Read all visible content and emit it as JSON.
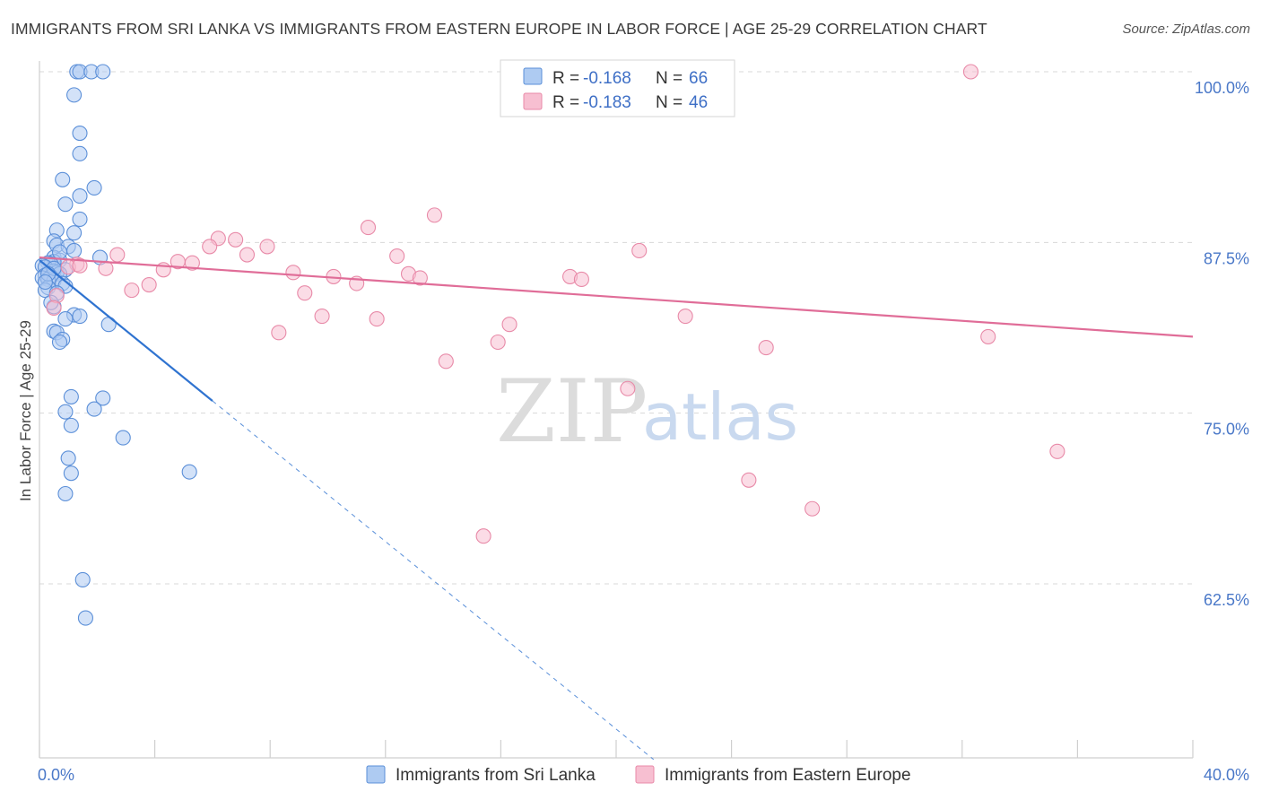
{
  "header": {
    "title": "IMMIGRANTS FROM SRI LANKA VS IMMIGRANTS FROM EASTERN EUROPE IN LABOR FORCE | AGE 25-29 CORRELATION CHART",
    "source": "Source: ZipAtlas.com"
  },
  "watermark": {
    "zip": "ZIP",
    "atlas": "atlas"
  },
  "colors": {
    "blue_fill": "#aecbf2",
    "blue_stroke": "#5b8fd8",
    "blue_line": "#2f73d0",
    "pink_fill": "#f7bfd1",
    "pink_stroke": "#e88aa8",
    "pink_line": "#e06d98",
    "grid": "#d8d8d8",
    "tick_text": "#4a78c8"
  },
  "chart_data": {
    "type": "scatter",
    "title": "IMMIGRANTS FROM SRI LANKA VS IMMIGRANTS FROM EASTERN EUROPE IN LABOR FORCE | AGE 25-29 CORRELATION CHART",
    "xlabel": "",
    "ylabel": "In Labor Force | Age 25-29",
    "xlim": [
      0,
      40
    ],
    "ylim": [
      50,
      102
    ],
    "x_tick_labels": [
      "0.0%",
      "40.0%"
    ],
    "y_ticks": [
      62.5,
      75.0,
      87.5,
      100.0
    ],
    "y_tick_labels": [
      "62.5%",
      "75.0%",
      "87.5%",
      "100.0%"
    ],
    "grid": true,
    "legend_position": "top-center",
    "legend": [
      {
        "r_label": "R = ",
        "r_value": "-0.168",
        "n_label": "N = ",
        "n_value": "66"
      },
      {
        "r_label": "R = ",
        "r_value": "-0.183",
        "n_label": "N = ",
        "n_value": "46"
      }
    ],
    "series": [
      {
        "name": "Immigrants from Sri Lanka",
        "color": "#5b8fd8",
        "trend": {
          "x": [
            0,
            6.0
          ],
          "y": [
            86.2,
            75.9
          ],
          "dash_to_x": 21.3
        },
        "points": [
          [
            1.3,
            100.0
          ],
          [
            1.4,
            100.0
          ],
          [
            1.8,
            100.0
          ],
          [
            2.2,
            100.0
          ],
          [
            1.2,
            98.3
          ],
          [
            1.4,
            95.5
          ],
          [
            1.4,
            94.0
          ],
          [
            0.8,
            92.1
          ],
          [
            1.9,
            91.5
          ],
          [
            1.4,
            90.9
          ],
          [
            0.9,
            90.3
          ],
          [
            1.4,
            89.2
          ],
          [
            0.6,
            88.4
          ],
          [
            1.2,
            88.2
          ],
          [
            0.5,
            87.6
          ],
          [
            0.6,
            87.3
          ],
          [
            1.0,
            87.2
          ],
          [
            1.2,
            86.9
          ],
          [
            0.5,
            86.4
          ],
          [
            0.7,
            86.2
          ],
          [
            0.5,
            86.1
          ],
          [
            0.3,
            86.0
          ],
          [
            0.4,
            85.9
          ],
          [
            0.1,
            85.8
          ],
          [
            0.2,
            85.7
          ],
          [
            0.9,
            85.5
          ],
          [
            0.5,
            85.4
          ],
          [
            0.6,
            85.3
          ],
          [
            0.7,
            85.2
          ],
          [
            0.2,
            85.1
          ],
          [
            0.4,
            85.0
          ],
          [
            0.1,
            84.9
          ],
          [
            0.3,
            84.8
          ],
          [
            0.5,
            84.7
          ],
          [
            0.8,
            84.5
          ],
          [
            0.9,
            84.3
          ],
          [
            0.3,
            84.2
          ],
          [
            0.2,
            84.0
          ],
          [
            0.6,
            83.8
          ],
          [
            0.5,
            82.8
          ],
          [
            1.2,
            82.2
          ],
          [
            1.4,
            82.1
          ],
          [
            0.9,
            81.9
          ],
          [
            2.4,
            81.5
          ],
          [
            0.5,
            81.0
          ],
          [
            0.6,
            80.9
          ],
          [
            0.8,
            80.4
          ],
          [
            0.7,
            80.2
          ],
          [
            1.1,
            76.2
          ],
          [
            2.2,
            76.1
          ],
          [
            0.9,
            75.1
          ],
          [
            1.9,
            75.3
          ],
          [
            1.1,
            74.1
          ],
          [
            2.9,
            73.2
          ],
          [
            1.0,
            71.7
          ],
          [
            1.1,
            70.6
          ],
          [
            5.2,
            70.7
          ],
          [
            0.9,
            69.1
          ],
          [
            1.5,
            62.8
          ],
          [
            1.6,
            60.0
          ],
          [
            2.1,
            86.4
          ],
          [
            0.5,
            85.6
          ],
          [
            0.3,
            85.2
          ],
          [
            0.2,
            84.6
          ],
          [
            0.7,
            86.8
          ],
          [
            0.4,
            83.1
          ]
        ]
      },
      {
        "name": "Immigrants from Eastern Europe",
        "color": "#e88aa8",
        "trend": {
          "x": [
            0,
            40
          ],
          "y": [
            86.4,
            80.6
          ]
        },
        "points": [
          [
            19.7,
            100.0
          ],
          [
            32.3,
            100.0
          ],
          [
            20.8,
            100.0
          ],
          [
            13.7,
            89.5
          ],
          [
            11.4,
            88.6
          ],
          [
            6.2,
            87.8
          ],
          [
            6.8,
            87.7
          ],
          [
            5.9,
            87.2
          ],
          [
            7.9,
            87.2
          ],
          [
            20.8,
            86.9
          ],
          [
            2.7,
            86.6
          ],
          [
            7.2,
            86.6
          ],
          [
            12.4,
            86.5
          ],
          [
            4.8,
            86.1
          ],
          [
            5.3,
            86.0
          ],
          [
            1.3,
            85.9
          ],
          [
            1.0,
            85.7
          ],
          [
            1.4,
            85.8
          ],
          [
            2.3,
            85.6
          ],
          [
            4.3,
            85.5
          ],
          [
            8.8,
            85.3
          ],
          [
            12.8,
            85.2
          ],
          [
            10.2,
            85.0
          ],
          [
            13.2,
            84.9
          ],
          [
            18.4,
            85.0
          ],
          [
            18.8,
            84.8
          ],
          [
            3.8,
            84.4
          ],
          [
            11.0,
            84.5
          ],
          [
            3.2,
            84.0
          ],
          [
            9.2,
            83.8
          ],
          [
            0.6,
            83.6
          ],
          [
            0.5,
            82.7
          ],
          [
            9.8,
            82.1
          ],
          [
            11.7,
            81.9
          ],
          [
            16.3,
            81.5
          ],
          [
            22.4,
            82.1
          ],
          [
            8.3,
            80.9
          ],
          [
            15.9,
            80.2
          ],
          [
            32.9,
            80.6
          ],
          [
            25.2,
            79.8
          ],
          [
            14.1,
            78.8
          ],
          [
            20.4,
            76.8
          ],
          [
            35.3,
            72.2
          ],
          [
            24.6,
            70.1
          ],
          [
            26.8,
            68.0
          ],
          [
            15.4,
            66.0
          ]
        ]
      }
    ]
  }
}
